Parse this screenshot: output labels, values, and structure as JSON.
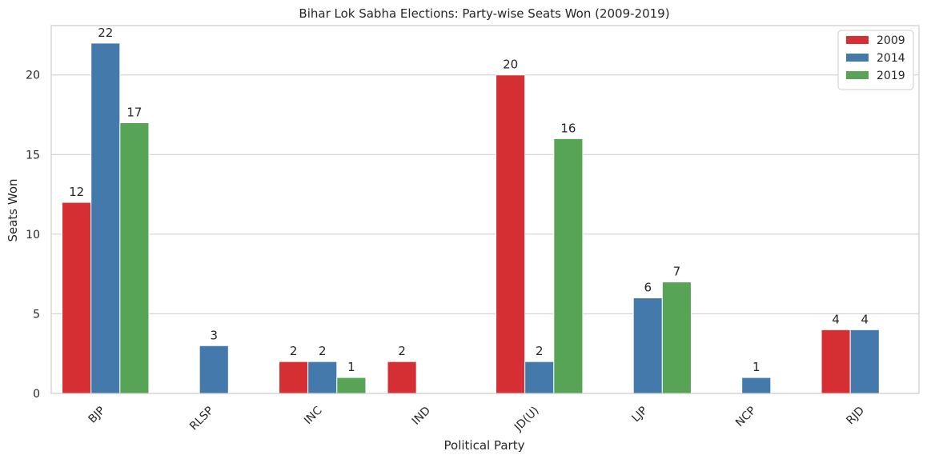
{
  "chart_data": {
    "type": "bar",
    "title": "Bihar Lok Sabha Elections: Party-wise Seats Won (2009-2019)",
    "xlabel": "Political Party",
    "ylabel": "Seats Won",
    "categories": [
      "BJP",
      "RLSP",
      "INC",
      "IND",
      "JD(U)",
      "LJP",
      "NCP",
      "RJD"
    ],
    "ylim": [
      0,
      23.1
    ],
    "yticks": [
      0,
      5,
      10,
      15,
      20
    ],
    "grid": true,
    "legend_position": "top-right",
    "series": [
      {
        "name": "2009",
        "color": "#d62f33",
        "values": [
          12,
          null,
          2,
          2,
          20,
          null,
          null,
          4
        ]
      },
      {
        "name": "2014",
        "color": "#4479ab",
        "values": [
          22,
          3,
          2,
          null,
          2,
          6,
          1,
          4
        ]
      },
      {
        "name": "2019",
        "color": "#57a456",
        "values": [
          17,
          null,
          1,
          null,
          16,
          7,
          null,
          null
        ]
      }
    ]
  }
}
